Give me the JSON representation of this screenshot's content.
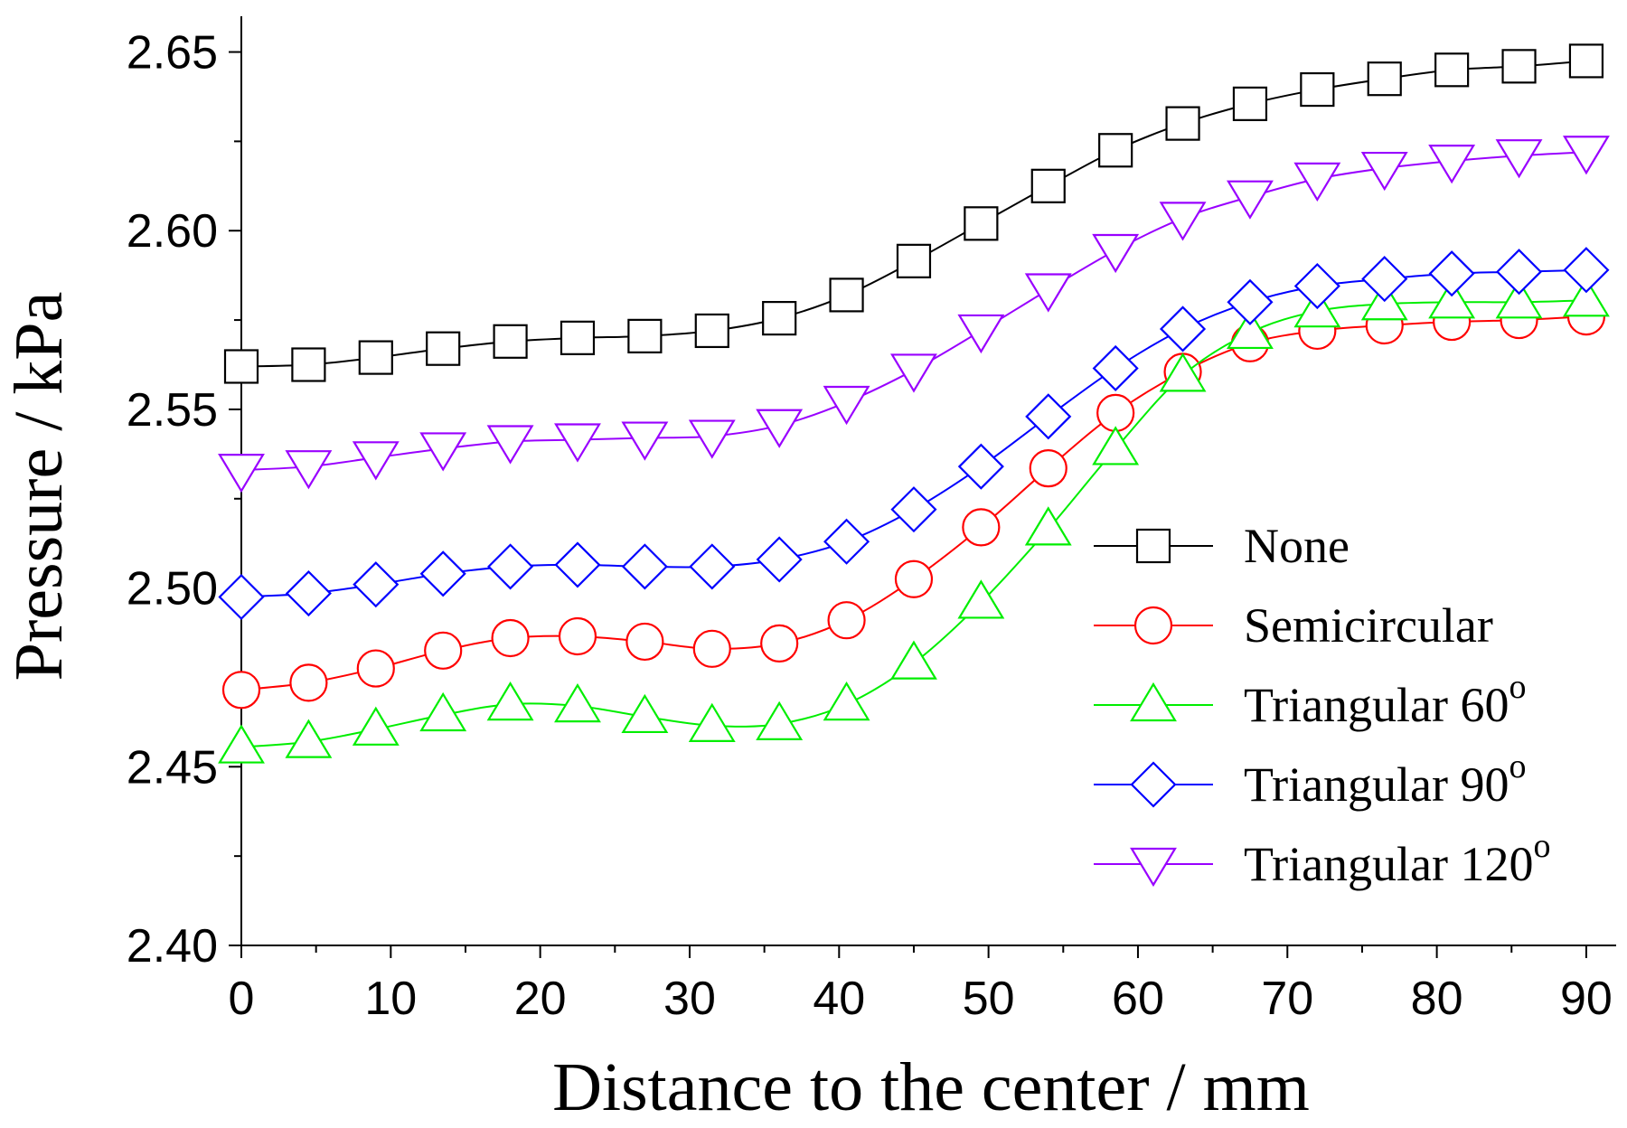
{
  "chart_data": {
    "type": "line",
    "title": "",
    "xlabel": "Distance to the center / mm",
    "ylabel": "Pressure / kPa",
    "xlim": [
      0,
      92
    ],
    "ylim": [
      2.4,
      2.66
    ],
    "xticks": [
      0,
      10,
      20,
      30,
      40,
      50,
      60,
      70,
      80,
      90
    ],
    "yticks": [
      2.4,
      2.45,
      2.5,
      2.55,
      2.6,
      2.65
    ],
    "xtick_labels": [
      "0",
      "10",
      "20",
      "30",
      "40",
      "50",
      "60",
      "70",
      "80",
      "90"
    ],
    "ytick_labels": [
      "2.40",
      "2.45",
      "2.50",
      "2.55",
      "2.60",
      "2.65"
    ],
    "legend_position": "right-center",
    "grid": false,
    "x": [
      0,
      4.5,
      9,
      13.5,
      18,
      22.5,
      27,
      31.5,
      36,
      40.5,
      45,
      49.5,
      54,
      58.5,
      63,
      67.5,
      72,
      76.5,
      81,
      85.5,
      90
    ],
    "series": [
      {
        "name": "None",
        "color": "#000000",
        "marker": "square",
        "values": [
          2.562,
          2.5625,
          2.5645,
          2.567,
          2.569,
          2.57,
          2.5705,
          2.572,
          2.5755,
          2.582,
          2.5915,
          2.602,
          2.6125,
          2.6225,
          2.63,
          2.6355,
          2.6395,
          2.6425,
          2.645,
          2.646,
          2.6475
        ]
      },
      {
        "name": "Semicircular",
        "color": "#ff0000",
        "marker": "circle",
        "values": [
          2.4715,
          2.4735,
          2.4775,
          2.4825,
          2.486,
          2.4865,
          2.485,
          2.483,
          2.4845,
          2.491,
          2.5025,
          2.517,
          2.5335,
          2.549,
          2.5605,
          2.5685,
          2.572,
          2.5735,
          2.5745,
          2.575,
          2.576
        ]
      },
      {
        "name": "Triangular 60o",
        "color": "#00ee00",
        "marker": "triangle-up",
        "values": [
          2.4555,
          2.457,
          2.4605,
          2.4645,
          2.4675,
          2.467,
          2.464,
          2.4615,
          2.462,
          2.4675,
          2.479,
          2.496,
          2.5165,
          2.539,
          2.5595,
          2.5715,
          2.5775,
          2.5795,
          2.58,
          2.58,
          2.5805
        ]
      },
      {
        "name": "Triangular 90o",
        "color": "#0000ff",
        "marker": "diamond",
        "values": [
          2.4975,
          2.4985,
          2.501,
          2.504,
          2.506,
          2.5065,
          2.506,
          2.506,
          2.508,
          2.513,
          2.522,
          2.534,
          2.548,
          2.5615,
          2.5725,
          2.58,
          2.5845,
          2.5865,
          2.588,
          2.5885,
          2.589
        ]
      },
      {
        "name": "Triangular 120o",
        "color": "#9900ff",
        "marker": "triangle-down",
        "values": [
          2.533,
          2.534,
          2.5365,
          2.539,
          2.541,
          2.5415,
          2.542,
          2.5425,
          2.5455,
          2.552,
          2.561,
          2.572,
          2.5835,
          2.5945,
          2.6035,
          2.6095,
          2.6145,
          2.6175,
          2.6195,
          2.621,
          2.622
        ]
      }
    ]
  }
}
